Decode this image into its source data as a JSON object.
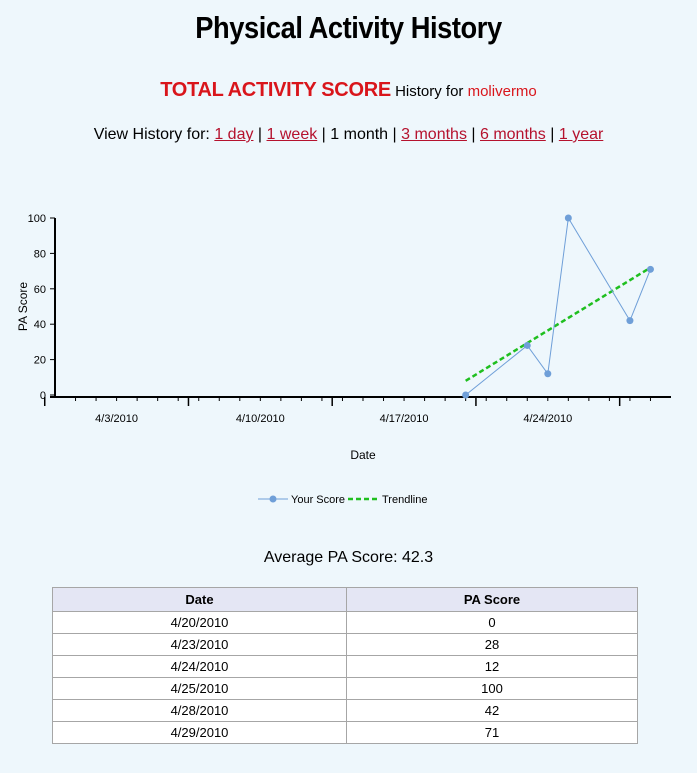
{
  "page": {
    "title": "Physical Activity History",
    "metric_label": "TOTAL ACTIVITY SCORE",
    "history_for": "History for",
    "username": "molivermo",
    "view_label": "View History for:",
    "periods": [
      {
        "label": "1 day",
        "link": true
      },
      {
        "label": "1 week",
        "link": true
      },
      {
        "label": "1 month",
        "link": false
      },
      {
        "label": "3 months",
        "link": true
      },
      {
        "label": "6 months",
        "link": true
      },
      {
        "label": "1 year",
        "link": true
      }
    ],
    "average_label": "Average PA Score: 42.3"
  },
  "chart_data": {
    "type": "line",
    "xlabel": "Date",
    "ylabel": "PA Score",
    "ylim": [
      0,
      100
    ],
    "yticks": [
      0,
      20,
      40,
      60,
      80,
      100
    ],
    "xlim": [
      "2010-03-31",
      "2010-04-30"
    ],
    "xtick_labels": [
      "4/3/2010",
      "4/10/2010",
      "4/17/2010",
      "4/24/2010"
    ],
    "xtick_dates": [
      "2010-04-03",
      "2010-04-10",
      "2010-04-17",
      "2010-04-24"
    ],
    "series": [
      {
        "name": "Your Score",
        "color": "#6f9fd8",
        "x": [
          "2010-04-20",
          "2010-04-23",
          "2010-04-24",
          "2010-04-25",
          "2010-04-28",
          "2010-04-29"
        ],
        "y": [
          0,
          28,
          12,
          100,
          42,
          71
        ]
      },
      {
        "name": "Trendline",
        "color": "#1fbf1f",
        "style": "dashed",
        "x": [
          "2010-04-20",
          "2010-04-29"
        ],
        "y": [
          8,
          72
        ]
      }
    ],
    "legend": "bottom-center",
    "grid": false
  },
  "table": {
    "headers": [
      "Date",
      "PA Score"
    ],
    "rows": [
      [
        "4/20/2010",
        "0"
      ],
      [
        "4/23/2010",
        "28"
      ],
      [
        "4/24/2010",
        "12"
      ],
      [
        "4/25/2010",
        "100"
      ],
      [
        "4/28/2010",
        "42"
      ],
      [
        "4/29/2010",
        "71"
      ]
    ]
  }
}
